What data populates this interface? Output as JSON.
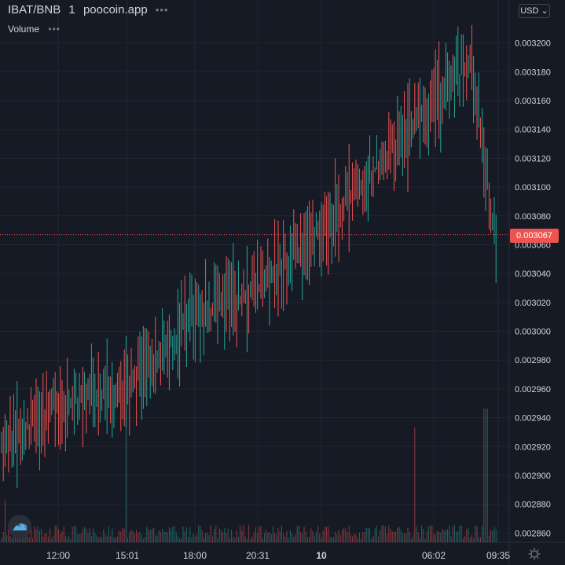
{
  "header": {
    "pair": "IBAT/BNB",
    "interval": "1",
    "source": "poocoin.app",
    "menu_dots": "•••"
  },
  "volume_pane": {
    "label": "Volume",
    "menu_dots": "•••"
  },
  "currency_selector": {
    "value": "USD",
    "caret": "⌄"
  },
  "last_price": "0.003067",
  "colors": {
    "background": "#161a25",
    "up": "#26a69a",
    "down": "#ef5350",
    "grid": "#232632",
    "text": "#d1d4dc"
  },
  "icons": {
    "logo": "poocoin-cloud-icon",
    "settings": "gear-icon"
  },
  "chart_data": {
    "type": "candlestick",
    "y_axis_ticks": [
      "0.003200",
      "0.003180",
      "0.003160",
      "0.003140",
      "0.003120",
      "0.003100",
      "0.003080",
      "0.003060",
      "0.003040",
      "0.003020",
      "0.003000",
      "0.002980",
      "0.002960",
      "0.002940",
      "0.002920",
      "0.002900",
      "0.002880",
      "0.002860"
    ],
    "x_axis_ticks": [
      "12:00",
      "15:01",
      "18:00",
      "20:31",
      "10",
      "06:02",
      "09:35"
    ],
    "ylim": [
      0.002858,
      0.00322
    ],
    "trend_points": [
      {
        "t": "start",
        "price": 0.00292
      },
      {
        "t": "12:00",
        "price": 0.00295
      },
      {
        "t": "15:01",
        "price": 0.00296
      },
      {
        "t": "18:00",
        "price": 0.00301
      },
      {
        "t": "20:31",
        "price": 0.00303
      },
      {
        "t": "10",
        "price": 0.00307
      },
      {
        "t": "06:02",
        "price": 0.00316
      },
      {
        "t": "peak",
        "price": 0.003185
      },
      {
        "t": "09:35",
        "price": 0.003067
      }
    ]
  }
}
